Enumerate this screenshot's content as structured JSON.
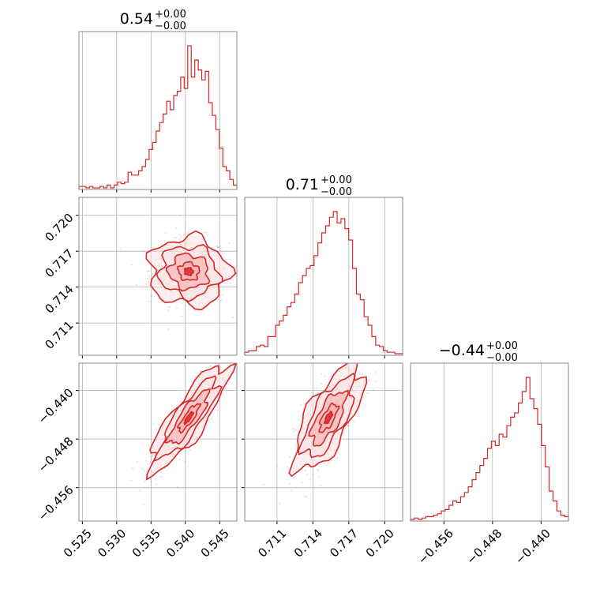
{
  "colors": {
    "accent": "#d62728",
    "fill_light": "#fbe2e2",
    "fill_mid": "#f2a9a9",
    "grid": "#b0b0b0"
  },
  "chart_data": {
    "type": "corner",
    "parameters": [
      {
        "title": {
          "main": "0.54",
          "sup": "+0.00",
          "sub": "−0.00"
        },
        "range": [
          0.5245,
          0.5475
        ],
        "ticks": [
          0.525,
          0.53,
          0.535,
          0.54,
          0.545
        ],
        "tick_labels": [
          "0.525",
          "0.530",
          "0.535",
          "0.540",
          "0.545"
        ],
        "mean": 0.5405,
        "sd": 0.0025,
        "hist": [
          0.01,
          0.01,
          0.0,
          0.01,
          0.0,
          0.0,
          0.01,
          0.0,
          0.02,
          0.0,
          0.02,
          0.04,
          0.03,
          0.04,
          0.11,
          0.09,
          0.09,
          0.12,
          0.15,
          0.2,
          0.27,
          0.32,
          0.4,
          0.46,
          0.52,
          0.61,
          0.55,
          0.65,
          0.68,
          0.78,
          0.7,
          1.0,
          0.78,
          0.9,
          0.83,
          0.76,
          0.82,
          0.6,
          0.51,
          0.41,
          0.28,
          0.15,
          0.12,
          0.06,
          0.02
        ]
      },
      {
        "title": {
          "main": "0.71",
          "sup": "+0.00",
          "sub": "−0.00"
        },
        "range": [
          0.7083,
          0.7215
        ],
        "ticks": [
          0.711,
          0.714,
          0.717,
          0.72
        ],
        "tick_labels": [
          "0.711",
          "0.714",
          "0.717",
          "0.720"
        ],
        "mean": 0.7153,
        "sd": 0.00125,
        "hist": [
          0.01,
          0.02,
          0.02,
          0.05,
          0.06,
          0.05,
          0.12,
          0.12,
          0.2,
          0.23,
          0.27,
          0.33,
          0.36,
          0.42,
          0.5,
          0.55,
          0.6,
          0.62,
          0.69,
          0.78,
          0.85,
          0.9,
          0.96,
          1.0,
          0.92,
          0.95,
          0.88,
          0.8,
          0.6,
          0.42,
          0.38,
          0.26,
          0.2,
          0.12,
          0.06,
          0.05,
          0.02,
          0.01,
          0.01,
          0.0,
          0.0
        ]
      },
      {
        "title": {
          "main": "−0.44",
          "sup": "+0.00",
          "sub": "−0.00"
        },
        "range": [
          -0.4615,
          -0.4355
        ],
        "ticks": [
          -0.456,
          -0.448,
          -0.44
        ],
        "tick_labels": [
          "−0.456",
          "−0.448",
          "−0.440"
        ],
        "mean": -0.4445,
        "sd": 0.0038,
        "hist": [
          0.0,
          0.01,
          0.0,
          0.01,
          0.02,
          0.02,
          0.03,
          0.04,
          0.06,
          0.07,
          0.1,
          0.13,
          0.12,
          0.16,
          0.19,
          0.23,
          0.28,
          0.33,
          0.38,
          0.43,
          0.5,
          0.55,
          0.52,
          0.6,
          0.58,
          0.66,
          0.72,
          0.75,
          0.82,
          0.9,
          1.0,
          0.85,
          0.78,
          0.67,
          0.52,
          0.37,
          0.2,
          0.13,
          0.06,
          0.03,
          0.02
        ]
      }
    ],
    "correlations": {
      "0-1": -0.05,
      "0-2": 0.85,
      "1-2": 0.7
    }
  }
}
